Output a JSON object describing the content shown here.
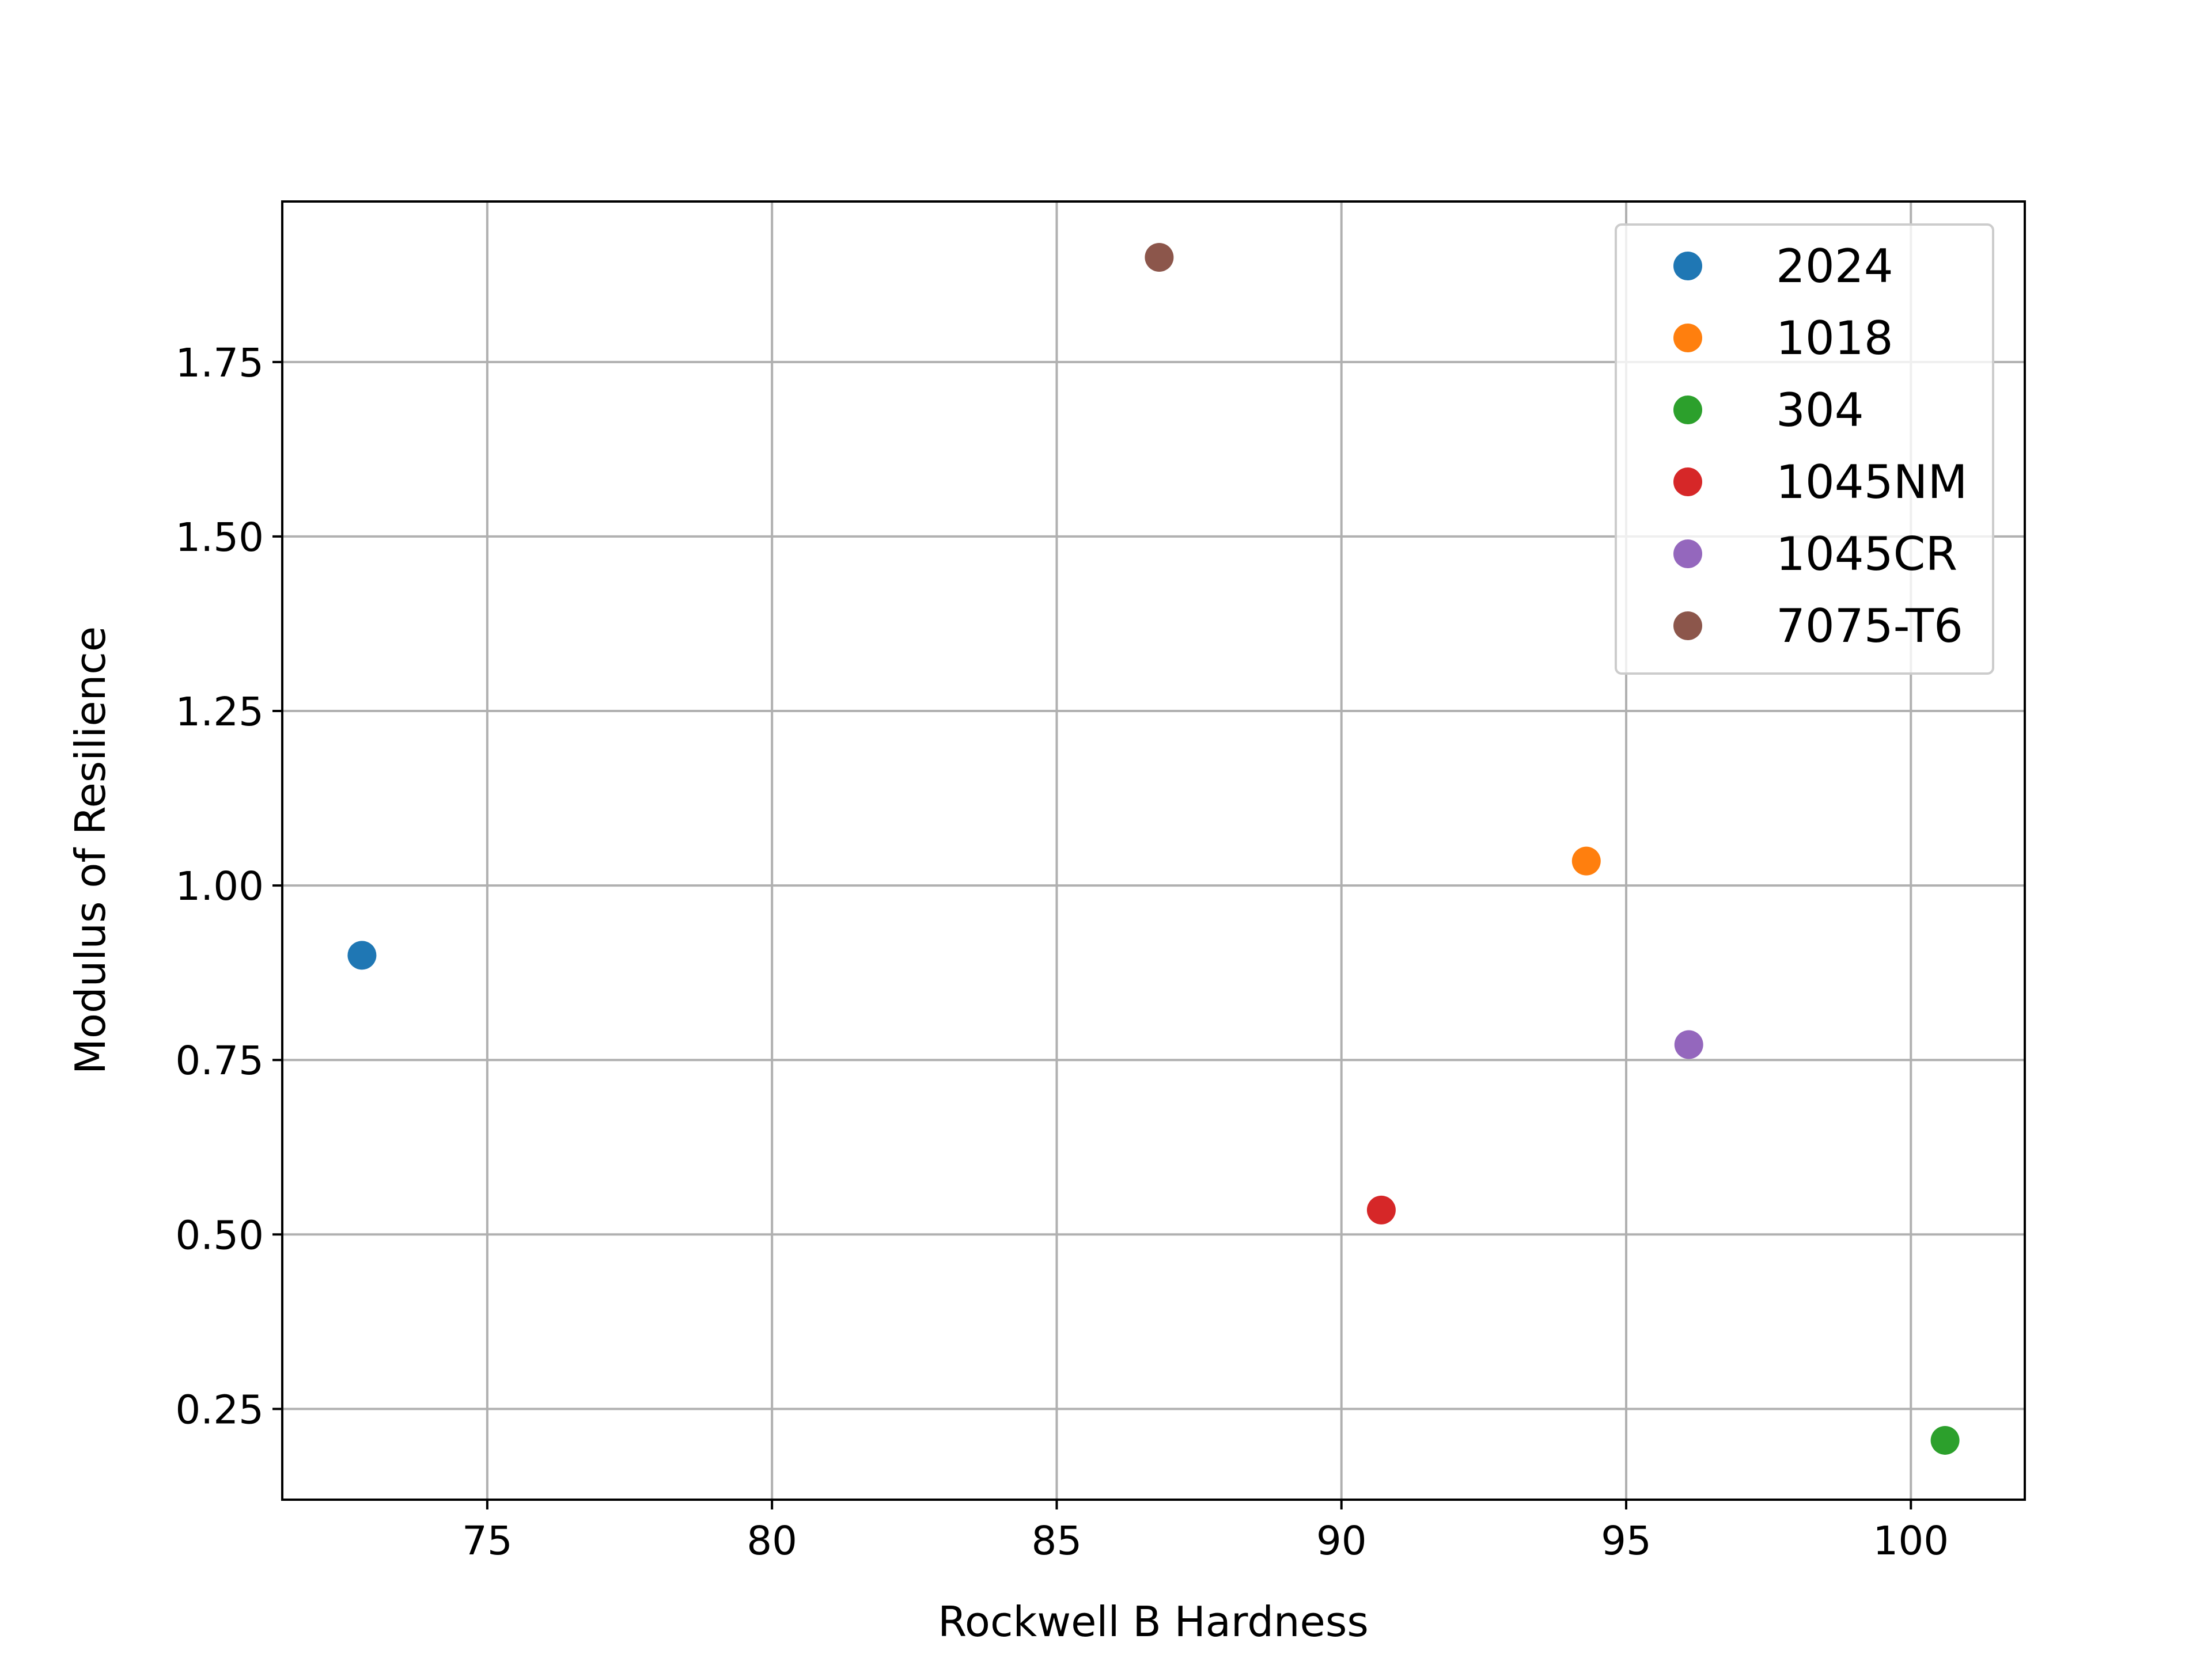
{
  "chart_data": {
    "type": "scatter",
    "title": "",
    "xlabel": "Rockwell B Hardness",
    "ylabel": "Modulus of Resilience",
    "xlim": [
      71.4,
      102.0
    ],
    "ylim": [
      0.12,
      1.98
    ],
    "xticks": [
      75,
      80,
      85,
      90,
      95,
      100
    ],
    "yticks": [
      0.25,
      0.5,
      0.75,
      1.0,
      1.25,
      1.5,
      1.75
    ],
    "xtick_labels": [
      "75",
      "80",
      "85",
      "90",
      "95",
      "100"
    ],
    "ytick_labels": [
      "0.25",
      "0.50",
      "0.75",
      "1.00",
      "1.25",
      "1.50",
      "1.75"
    ],
    "grid": true,
    "legend_position": "top-right",
    "series": [
      {
        "name": "2024",
        "color": "#1f77b4",
        "x": [
          72.8
        ],
        "y": [
          0.9
        ]
      },
      {
        "name": "1018",
        "color": "#ff7f0e",
        "x": [
          94.3
        ],
        "y": [
          1.035
        ]
      },
      {
        "name": "304",
        "color": "#2ca02c",
        "x": [
          100.6
        ],
        "y": [
          0.205
        ]
      },
      {
        "name": "1045NM",
        "color": "#d62728",
        "x": [
          90.7
        ],
        "y": [
          0.535
        ]
      },
      {
        "name": "1045CR",
        "color": "#9467bd",
        "x": [
          96.1
        ],
        "y": [
          0.772
        ]
      },
      {
        "name": "7075-T6",
        "color": "#8c564b",
        "x": [
          86.8
        ],
        "y": [
          1.9
        ]
      }
    ]
  }
}
